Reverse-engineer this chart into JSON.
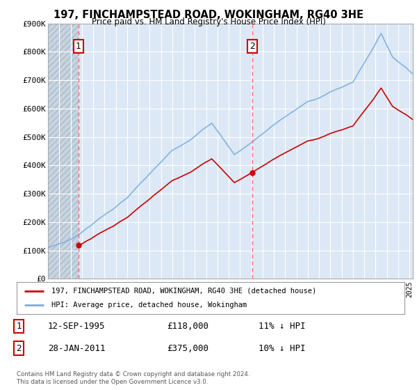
{
  "title": "197, FINCHAMPSTEAD ROAD, WOKINGHAM, RG40 3HE",
  "subtitle": "Price paid vs. HM Land Registry's House Price Index (HPI)",
  "legend_line1": "197, FINCHAMPSTEAD ROAD, WOKINGHAM, RG40 3HE (detached house)",
  "legend_line2": "HPI: Average price, detached house, Wokingham",
  "point1_label": "1",
  "point1_date": "12-SEP-1995",
  "point1_price": "£118,000",
  "point1_hpi": "11% ↓ HPI",
  "point1_year": 1995.71,
  "point1_value": 118000,
  "point2_label": "2",
  "point2_date": "28-JAN-2011",
  "point2_price": "£375,000",
  "point2_hpi": "10% ↓ HPI",
  "point2_year": 2011.08,
  "point2_value": 375000,
  "footer": "Contains HM Land Registry data © Crown copyright and database right 2024.\nThis data is licensed under the Open Government Licence v3.0.",
  "ylim": [
    0,
    900000
  ],
  "yticks": [
    0,
    100000,
    200000,
    300000,
    400000,
    500000,
    600000,
    700000,
    800000,
    900000
  ],
  "ytick_labels": [
    "£0",
    "£100K",
    "£200K",
    "£300K",
    "£400K",
    "£500K",
    "£600K",
    "£700K",
    "£800K",
    "£900K"
  ],
  "hpi_color": "#7aaddc",
  "sale_color": "#cc0000",
  "vline_color": "#ff6666",
  "plot_bg_color": "#dce8f5",
  "hatch_bg_color": "#c8d4e0",
  "grid_color": "#ffffff",
  "background_color": "#ffffff",
  "xmin": 1993.0,
  "xmax": 2025.3
}
